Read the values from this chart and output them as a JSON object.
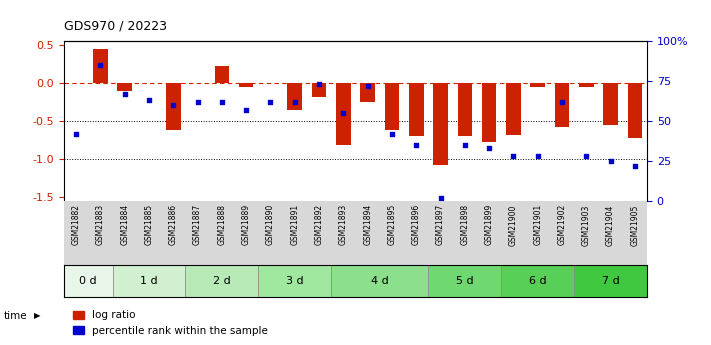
{
  "title": "GDS970 / 20223",
  "samples": [
    "GSM21882",
    "GSM21883",
    "GSM21884",
    "GSM21885",
    "GSM21886",
    "GSM21887",
    "GSM21888",
    "GSM21889",
    "GSM21890",
    "GSM21891",
    "GSM21892",
    "GSM21893",
    "GSM21894",
    "GSM21895",
    "GSM21896",
    "GSM21897",
    "GSM21898",
    "GSM21899",
    "GSM21900",
    "GSM21901",
    "GSM21902",
    "GSM21903",
    "GSM21904",
    "GSM21905"
  ],
  "log_ratio": [
    0.0,
    0.45,
    -0.1,
    0.0,
    -0.62,
    0.0,
    0.22,
    -0.05,
    0.0,
    -0.35,
    -0.18,
    -0.82,
    -0.25,
    -0.62,
    -0.7,
    -1.08,
    -0.7,
    -0.78,
    -0.68,
    -0.05,
    -0.58,
    -0.05,
    -0.55,
    -0.72
  ],
  "percentile": [
    0.42,
    0.85,
    0.67,
    0.63,
    0.6,
    0.62,
    0.62,
    0.57,
    0.62,
    0.62,
    0.73,
    0.55,
    0.72,
    0.42,
    0.35,
    0.02,
    0.35,
    0.33,
    0.28,
    0.28,
    0.62,
    0.28,
    0.25,
    0.22
  ],
  "time_groups": [
    {
      "label": "0 d",
      "start": 0,
      "end": 2,
      "color": "#e8f5e8"
    },
    {
      "label": "1 d",
      "start": 2,
      "end": 5,
      "color": "#d0f0d0"
    },
    {
      "label": "2 d",
      "start": 5,
      "end": 8,
      "color": "#b8eab8"
    },
    {
      "label": "3 d",
      "start": 8,
      "end": 11,
      "color": "#a0e8a0"
    },
    {
      "label": "4 d",
      "start": 11,
      "end": 15,
      "color": "#8ce08c"
    },
    {
      "label": "5 d",
      "start": 15,
      "end": 18,
      "color": "#70d870"
    },
    {
      "label": "6 d",
      "start": 18,
      "end": 21,
      "color": "#58d058"
    },
    {
      "label": "7 d",
      "start": 21,
      "end": 24,
      "color": "#40c840"
    }
  ],
  "bar_color": "#cc2200",
  "dot_color": "#0000cc",
  "dashed_line_color": "#cc2200",
  "ylim": [
    -1.55,
    0.55
  ],
  "yticks_left": [
    0.5,
    0.0,
    -0.5,
    -1.0,
    -1.5
  ],
  "yticks_right_vals": [
    1.0,
    0.75,
    0.5,
    0.25,
    0.0
  ],
  "yticks_right_labels": [
    "100%",
    "75",
    "50",
    "25",
    "0"
  ],
  "bar_width": 0.6,
  "label_bg_color": "#d8d8d8"
}
